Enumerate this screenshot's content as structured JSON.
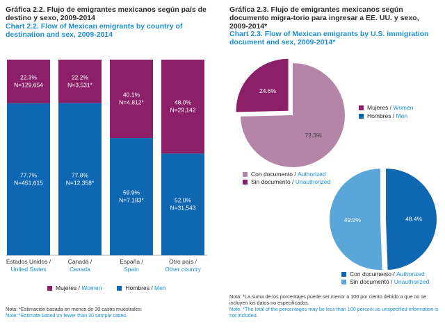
{
  "left": {
    "title_es": "Gráfica 2.2. Flujo de emigrantes mexicanos según país de destino y sexo, 2009-2014",
    "title_en": "Chart 2.2. Flow of Mexican emigrants by country of destination and sex, 2009-2014",
    "legend": {
      "women_es": "Mujeres",
      "women_en": "Women",
      "men_es": "Hombres",
      "men_en": "Men"
    },
    "note_es": "Nota: *Estimación basada en menos de 30 casos muestrales.",
    "note_en": "Note: *Estimate based on fewer than 30 sample cases."
  },
  "right": {
    "title_es": "Gráfica 2.3. Flujo de emigrantes mexicanos según documento migra-torio para ingresar a EE. UU. y sexo, 2009-2014*",
    "title_en": "Chart 2.3. Flow of Mexican emigrants by U.S. immigration document and sex, 2009-2014*",
    "legend_top": {
      "women_es": "Mujeres",
      "women_en": "Women",
      "men_es": "Hombres",
      "men_en": "Men"
    },
    "legend_doc1": {
      "auth_es": "Con documento",
      "auth_en": "Authorized",
      "unauth_es": "Sin documento",
      "unauth_en": "Unauthorized"
    },
    "legend_doc2": {
      "auth_es": "Con documento",
      "auth_en": "Authorized",
      "unauth_es": "Sin documento",
      "unauth_en": "Unauthorized"
    },
    "note_es": "Nota: *La suma de los porcentajes puede ser menor a 100 por ciento debido a que no se incluyen los datos no especificados.",
    "note_en": "Note: *The total of the percentages may be less than 100 percent as unspecified information is not included."
  },
  "colors": {
    "women": "#8b2069",
    "men": "#0e67b0",
    "authorized_women": "#b585a8",
    "unauthorized_women": "#8b2069",
    "authorized_men": "#0e67b0",
    "unauthorized_men": "#5aa6d9"
  },
  "chart_data": [
    {
      "type": "bar",
      "stacked": true,
      "percent": true,
      "title": "Chart 2.2. Flow of Mexican emigrants by country of destination and sex, 2009-2014",
      "categories_es": [
        "Estados Unidos /",
        "Canadá /",
        "España /",
        "Otro país /"
      ],
      "categories_en": [
        "United States",
        "Canada",
        "Spain",
        "Other country"
      ],
      "ylim": [
        0,
        100
      ],
      "series": [
        {
          "name": "Hombres / Men",
          "values": [
            77.7,
            77.8,
            59.9,
            52.0
          ],
          "labels_pct": [
            "77.7%",
            "77.8%",
            "59.9%",
            "52.0%"
          ],
          "labels_n": [
            "N=451,615",
            "N=12,358*",
            "N=7,183*",
            "N=31,543"
          ]
        },
        {
          "name": "Mujeres / Women",
          "values": [
            22.3,
            22.2,
            40.1,
            48.0
          ],
          "labels_pct": [
            "22.3%",
            "22.2%",
            "40.1%",
            "48.0%"
          ],
          "labels_n": [
            "N=129,654",
            "N=3,531*",
            "N=4,812*",
            "N=29,142"
          ]
        }
      ]
    },
    {
      "type": "pie",
      "title": "Mujeres / Women",
      "slices": [
        {
          "name": "Con documento / Authorized",
          "value": 72.3,
          "label": "72.3%"
        },
        {
          "name": "Sin documento / Unauthorized",
          "value": 24.6,
          "label": "24.6%"
        }
      ]
    },
    {
      "type": "pie",
      "title": "Hombres / Men",
      "slices": [
        {
          "name": "Con documento / Authorized",
          "value": 48.4,
          "label": "48.4%"
        },
        {
          "name": "Sin documento / Unauthorized",
          "value": 49.5,
          "label": "49.5%"
        }
      ]
    }
  ]
}
